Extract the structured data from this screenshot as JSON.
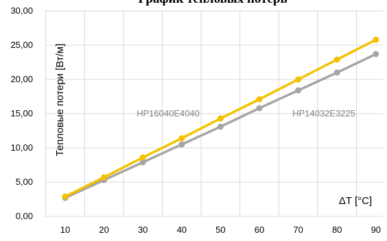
{
  "chart_data": {
    "type": "line",
    "title": "График тепловых потерь",
    "ylabel": "Тепловые потери [Вт/м]",
    "xlabel": "ΔT [°C]",
    "x": [
      10,
      20,
      30,
      40,
      50,
      60,
      70,
      80,
      90
    ],
    "ylim": [
      0,
      30
    ],
    "yticks": [
      "0,00",
      "5,00",
      "10,00",
      "15,00",
      "20,00",
      "25,00",
      "30,00"
    ],
    "xticks": [
      "10",
      "20",
      "30",
      "40",
      "50",
      "60",
      "70",
      "80",
      "90"
    ],
    "grid": true,
    "series": [
      {
        "name": "HP16040E4040",
        "color": "#f5c000",
        "values": [
          2.9,
          5.7,
          8.6,
          11.4,
          14.3,
          17.1,
          20.0,
          22.9,
          25.8
        ]
      },
      {
        "name": "HP14032E3225",
        "color": "#a5a5a5",
        "values": [
          2.7,
          5.3,
          7.9,
          10.5,
          13.1,
          15.8,
          18.4,
          21.0,
          23.7
        ]
      }
    ]
  }
}
